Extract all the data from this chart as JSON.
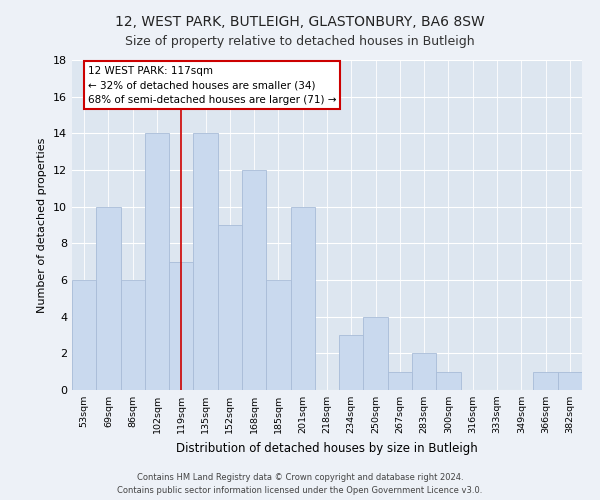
{
  "title": "12, WEST PARK, BUTLEIGH, GLASTONBURY, BA6 8SW",
  "subtitle": "Size of property relative to detached houses in Butleigh",
  "xlabel": "Distribution of detached houses by size in Butleigh",
  "ylabel": "Number of detached properties",
  "categories": [
    "53sqm",
    "69sqm",
    "86sqm",
    "102sqm",
    "119sqm",
    "135sqm",
    "152sqm",
    "168sqm",
    "185sqm",
    "201sqm",
    "218sqm",
    "234sqm",
    "250sqm",
    "267sqm",
    "283sqm",
    "300sqm",
    "316sqm",
    "333sqm",
    "349sqm",
    "366sqm",
    "382sqm"
  ],
  "values": [
    6,
    10,
    6,
    14,
    7,
    14,
    9,
    12,
    6,
    10,
    0,
    3,
    4,
    1,
    2,
    1,
    0,
    0,
    0,
    1,
    1
  ],
  "bar_color": "#c9d9ee",
  "bar_edge_color": "#a8bcd8",
  "red_line_x": 4.5,
  "annotation_text": "12 WEST PARK: 117sqm\n← 32% of detached houses are smaller (34)\n68% of semi-detached houses are larger (71) →",
  "annotation_box_color": "#ffffff",
  "annotation_box_edge": "#cc0000",
  "ylim": [
    0,
    18
  ],
  "yticks": [
    0,
    2,
    4,
    6,
    8,
    10,
    12,
    14,
    16,
    18
  ],
  "footer_line1": "Contains HM Land Registry data © Crown copyright and database right 2024.",
  "footer_line2": "Contains public sector information licensed under the Open Government Licence v3.0.",
  "fig_facecolor": "#edf1f7",
  "plot_facecolor": "#dde6f0",
  "grid_color": "#ffffff",
  "title_fontsize": 10,
  "subtitle_fontsize": 9
}
